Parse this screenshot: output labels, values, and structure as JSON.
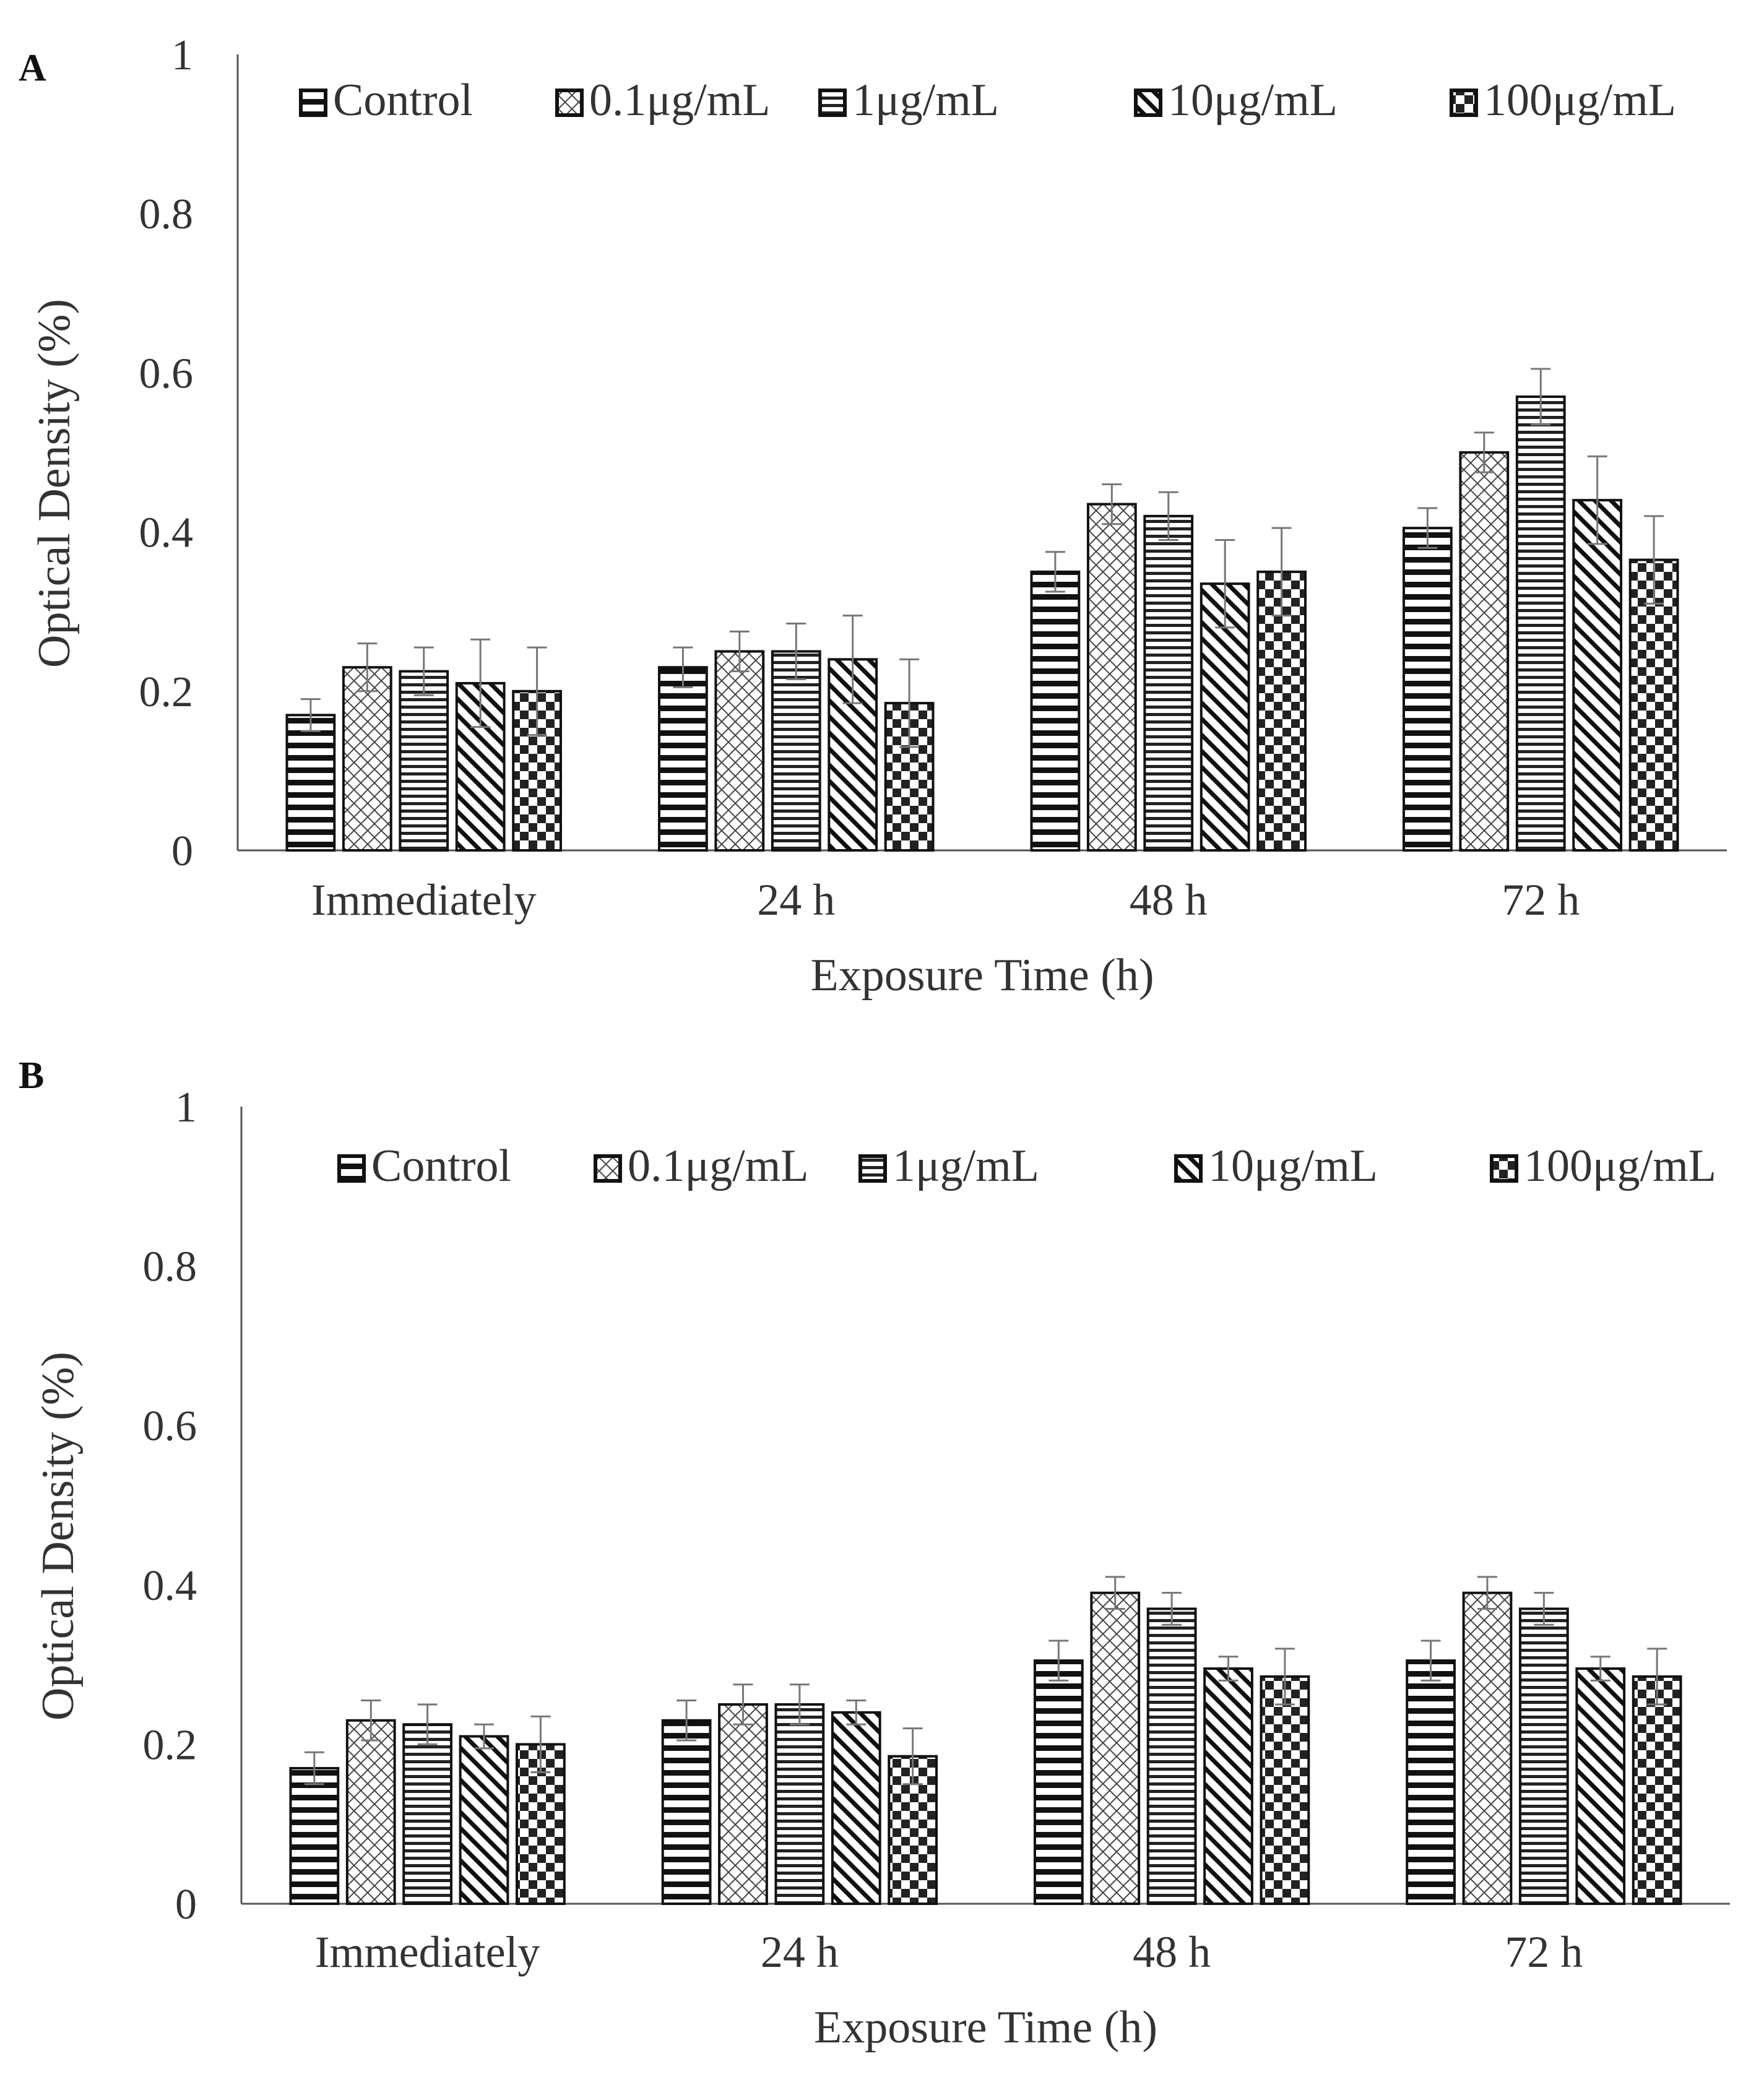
{
  "colors": {
    "ink": "#111111",
    "axis": "#555555",
    "text": "#333333",
    "error": "#777777",
    "background": "#ffffff"
  },
  "chart_data": [
    {
      "panel": "A",
      "type": "bar",
      "xlabel": "Exposure Time (h)",
      "ylabel": "Optical Density (%)",
      "ylim": [
        0,
        1
      ],
      "yticks": [
        "0",
        "0.2",
        "0.4",
        "0.6",
        "0.8",
        "1"
      ],
      "categories": [
        "Immediately",
        "24 h",
        "48 h",
        "72 h"
      ],
      "legend_position": "top",
      "series": [
        {
          "name": "Control",
          "pattern": "horizontal-lines",
          "values": [
            0.17,
            0.23,
            0.35,
            0.405
          ],
          "errors": [
            0.02,
            0.025,
            0.025,
            0.025
          ]
        },
        {
          "name": "0.1μg/mL",
          "pattern": "crosshatch",
          "values": [
            0.23,
            0.25,
            0.435,
            0.5
          ],
          "errors": [
            0.03,
            0.025,
            0.025,
            0.025
          ]
        },
        {
          "name": "1μg/mL",
          "pattern": "fine-lines",
          "values": [
            0.225,
            0.25,
            0.42,
            0.57
          ],
          "errors": [
            0.03,
            0.035,
            0.03,
            0.035
          ]
        },
        {
          "name": "10μg/mL",
          "pattern": "diagonal",
          "values": [
            0.21,
            0.24,
            0.335,
            0.44
          ],
          "errors": [
            0.055,
            0.055,
            0.055,
            0.055
          ]
        },
        {
          "name": "100μg/mL",
          "pattern": "checker",
          "values": [
            0.2,
            0.185,
            0.35,
            0.365
          ],
          "errors": [
            0.055,
            0.055,
            0.055,
            0.055
          ]
        }
      ]
    },
    {
      "panel": "B",
      "type": "bar",
      "xlabel": "Exposure Time (h)",
      "ylabel": "Optical Density (%)",
      "ylim": [
        0,
        1
      ],
      "yticks": [
        "0",
        "0.2",
        "0.4",
        "0.6",
        "0.8",
        "1"
      ],
      "categories": [
        "Immediately",
        "24 h",
        "48 h",
        "72 h"
      ],
      "legend_position": "top",
      "series": [
        {
          "name": "Control",
          "pattern": "horizontal-lines",
          "values": [
            0.17,
            0.23,
            0.305,
            0.305
          ],
          "errors": [
            0.02,
            0.025,
            0.025,
            0.025
          ]
        },
        {
          "name": "0.1μg/mL",
          "pattern": "crosshatch",
          "values": [
            0.23,
            0.25,
            0.39,
            0.39
          ],
          "errors": [
            0.025,
            0.025,
            0.02,
            0.02
          ]
        },
        {
          "name": "1μg/mL",
          "pattern": "fine-lines",
          "values": [
            0.225,
            0.25,
            0.37,
            0.37
          ],
          "errors": [
            0.025,
            0.025,
            0.02,
            0.02
          ]
        },
        {
          "name": "10μg/mL",
          "pattern": "diagonal",
          "values": [
            0.21,
            0.24,
            0.295,
            0.295
          ],
          "errors": [
            0.015,
            0.015,
            0.015,
            0.015
          ]
        },
        {
          "name": "100μg/mL",
          "pattern": "checker",
          "values": [
            0.2,
            0.185,
            0.285,
            0.285
          ],
          "errors": [
            0.035,
            0.035,
            0.035,
            0.035
          ]
        }
      ]
    }
  ]
}
